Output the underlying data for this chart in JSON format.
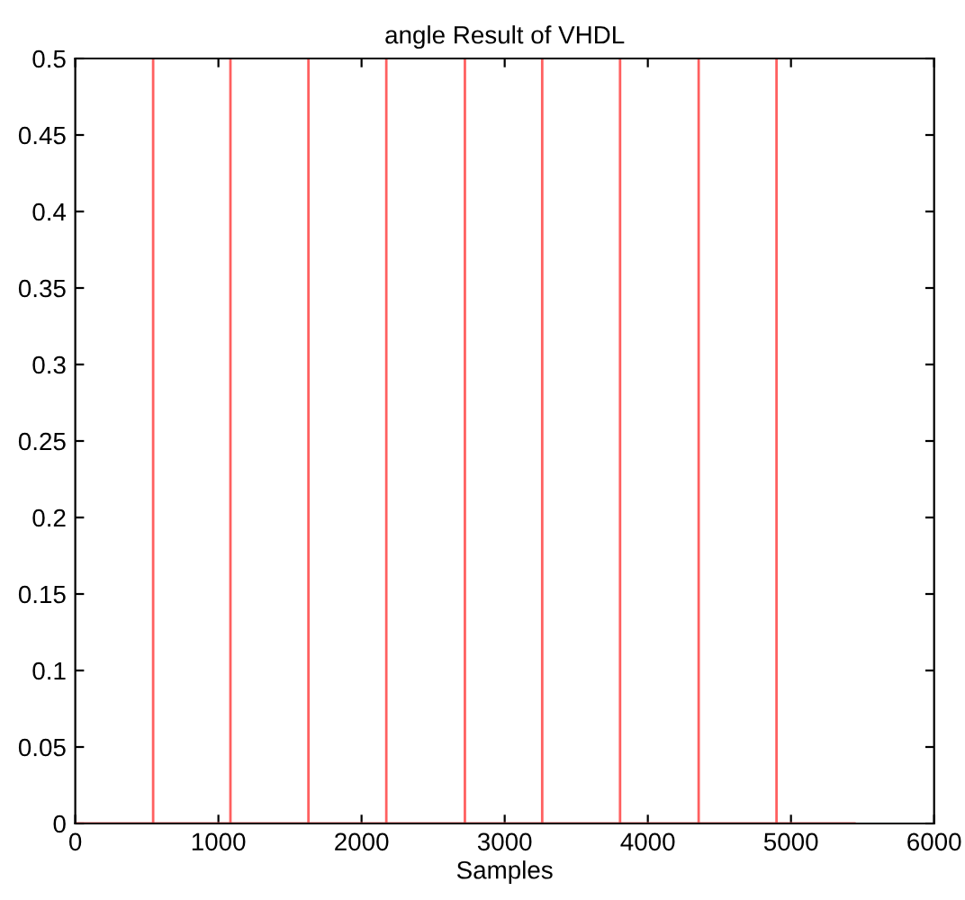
{
  "chart_data": {
    "type": "line",
    "title": "angle Result of VHDL",
    "xlabel": "Samples",
    "xlim": [
      0,
      6000
    ],
    "ylim": [
      0,
      0.5
    ],
    "xticks": [
      0,
      1000,
      2000,
      3000,
      4000,
      5000,
      6000
    ],
    "yticks": [
      0,
      0.05,
      0.1,
      0.15,
      0.2,
      0.25,
      0.3,
      0.35,
      0.4,
      0.45,
      0.5
    ],
    "grid": false,
    "legend": false,
    "marker": "none",
    "line_style": "solid",
    "series": [
      {
        "color": "#ff6060",
        "x": [
          0,
          544,
          544,
          544,
          1084,
          1084,
          1084,
          1629,
          1629,
          1629,
          2173,
          2173,
          2173,
          2722,
          2722,
          2722,
          3262,
          3262,
          3262,
          3806,
          3806,
          3806,
          4355,
          4355,
          4355,
          4899,
          4899,
          4899,
          5444
        ],
        "values": [
          0,
          0,
          0.5,
          0,
          0,
          0.5,
          0,
          0,
          0.5,
          0,
          0,
          0.5,
          0,
          0,
          0.5,
          0,
          0,
          0.5,
          0,
          0,
          0.5,
          0,
          0,
          0.5,
          0,
          0,
          0.5,
          0,
          0
        ]
      }
    ]
  }
}
